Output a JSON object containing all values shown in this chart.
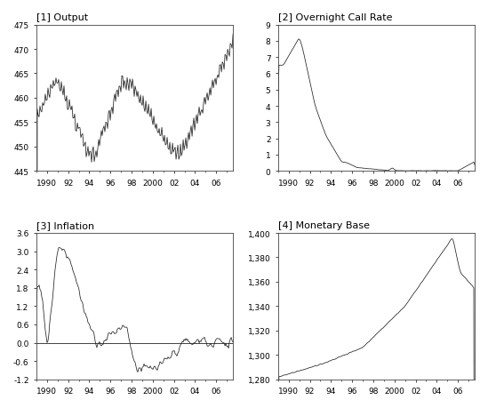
{
  "subplots": [
    {
      "label": "[1] Output",
      "ylim": [
        445,
        475
      ],
      "yticks": [
        445,
        450,
        455,
        460,
        465,
        470,
        475
      ]
    },
    {
      "label": "[2] Overnight Call Rate",
      "ylim": [
        0,
        9
      ],
      "yticks": [
        0,
        1,
        2,
        3,
        4,
        5,
        6,
        7,
        8,
        9
      ]
    },
    {
      "label": "[3] Inflation",
      "ylim": [
        -1.2,
        3.6
      ],
      "yticks": [
        -1.2,
        -0.6,
        0.0,
        0.6,
        1.2,
        1.8,
        2.4,
        3.0,
        3.6
      ]
    },
    {
      "label": "[4] Monetary Base",
      "ylim": [
        1280,
        1400
      ],
      "yticks": [
        1280,
        1300,
        1320,
        1340,
        1360,
        1380,
        1400
      ]
    }
  ],
  "xtick_positions": [
    1990,
    1992,
    1994,
    1996,
    1998,
    2000,
    2002,
    2004,
    2006
  ],
  "xtick_labels": [
    "1990",
    "92",
    "94",
    "96",
    "98",
    "2000",
    "02",
    "04",
    "06"
  ],
  "line_color": "#222222",
  "background_color": "#ffffff"
}
